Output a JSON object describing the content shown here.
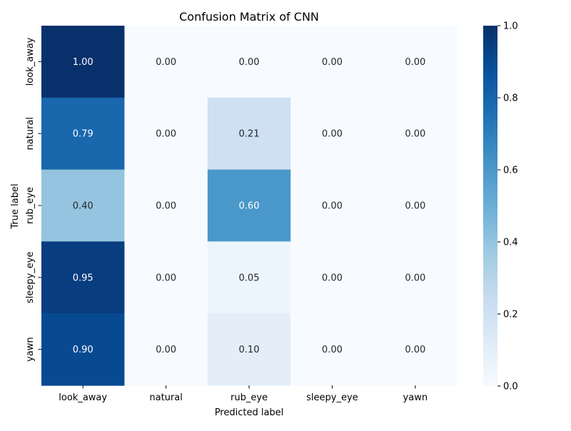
{
  "chart_data": {
    "type": "heatmap",
    "title": "Confusion Matrix of CNN",
    "xlabel": "Predicted label",
    "ylabel": "True label",
    "x_categories": [
      "look_away",
      "natural",
      "rub_eye",
      "sleepy_eye",
      "yawn"
    ],
    "y_categories": [
      "look_away",
      "natural",
      "rub_eye",
      "sleepy_eye",
      "yawn"
    ],
    "values": [
      [
        1.0,
        0.0,
        0.0,
        0.0,
        0.0
      ],
      [
        0.79,
        0.0,
        0.21,
        0.0,
        0.0
      ],
      [
        0.4,
        0.0,
        0.6,
        0.0,
        0.0
      ],
      [
        0.95,
        0.0,
        0.05,
        0.0,
        0.0
      ],
      [
        0.9,
        0.0,
        0.1,
        0.0,
        0.0
      ]
    ],
    "colorbar": {
      "colormap": "Blues",
      "range": [
        0.0,
        1.0
      ],
      "ticks": [
        "0.0",
        "0.2",
        "0.4",
        "0.6",
        "0.8",
        "1.0"
      ]
    },
    "value_format": "0.00"
  }
}
